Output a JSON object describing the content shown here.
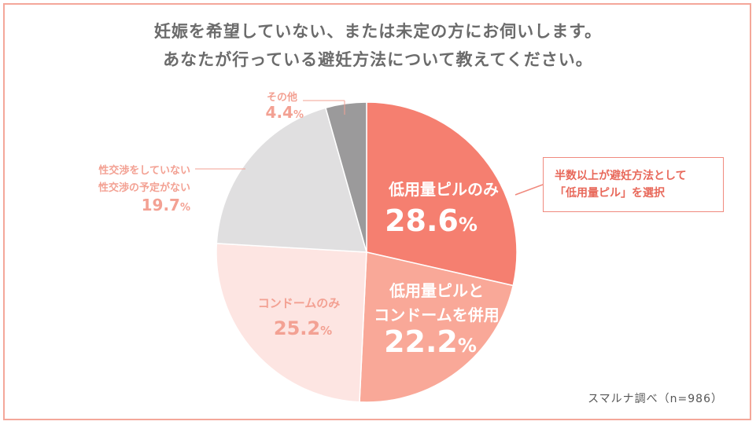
{
  "title_line1": "妊娠を希望していない、または未定の方にお伺いします。",
  "title_line2": "あなたが行っている避妊方法について教えてください。",
  "chart_data": {
    "type": "pie",
    "title": "あなたが行っている避妊方法について教えてください。",
    "slices": [
      {
        "label": "低用量ピルのみ",
        "value": 28.6,
        "display": "28.6%",
        "color": "#f57f70",
        "text_color": "#ffffff"
      },
      {
        "label": "低用量ピルとコンドームを併用",
        "value": 22.2,
        "display": "22.2%",
        "color": "#f9a898",
        "text_color": "#ffffff"
      },
      {
        "label": "コンドームのみ",
        "value": 25.2,
        "display": "25.2%",
        "color": "#fde5e2",
        "text_color": "#f3a193"
      },
      {
        "label": "性交渉をしていない性交渉の予定がない",
        "value": 19.7,
        "display": "19.7%",
        "color": "#e0dfe0",
        "text_color": "#f3a193"
      },
      {
        "label": "その他",
        "value": 4.4,
        "display": "4.4%",
        "color": "#9b9a9b",
        "text_color": "#f3a193"
      }
    ]
  },
  "labels": {
    "pill_only": "低用量ピルのみ",
    "pill_only_value": "28.6",
    "combined_line1": "低用量ピルと",
    "combined_line2": "コンドームを併用",
    "combined_value": "22.2",
    "condom_only": "コンドームのみ",
    "condom_only_value": "25.2",
    "no_sex_line1": "性交渉をしていない",
    "no_sex_line2": "性交渉の予定がない",
    "no_sex_value": "19.7",
    "other": "その他",
    "other_value": "4.4",
    "percent": "%"
  },
  "callout": {
    "line1": "半数以上が避妊方法として",
    "line2": "「低用量ピル」を選択"
  },
  "source": "スマルナ調べ（n=986）",
  "colors": {
    "accent": "#f57f70",
    "border": "#f4a79a"
  }
}
